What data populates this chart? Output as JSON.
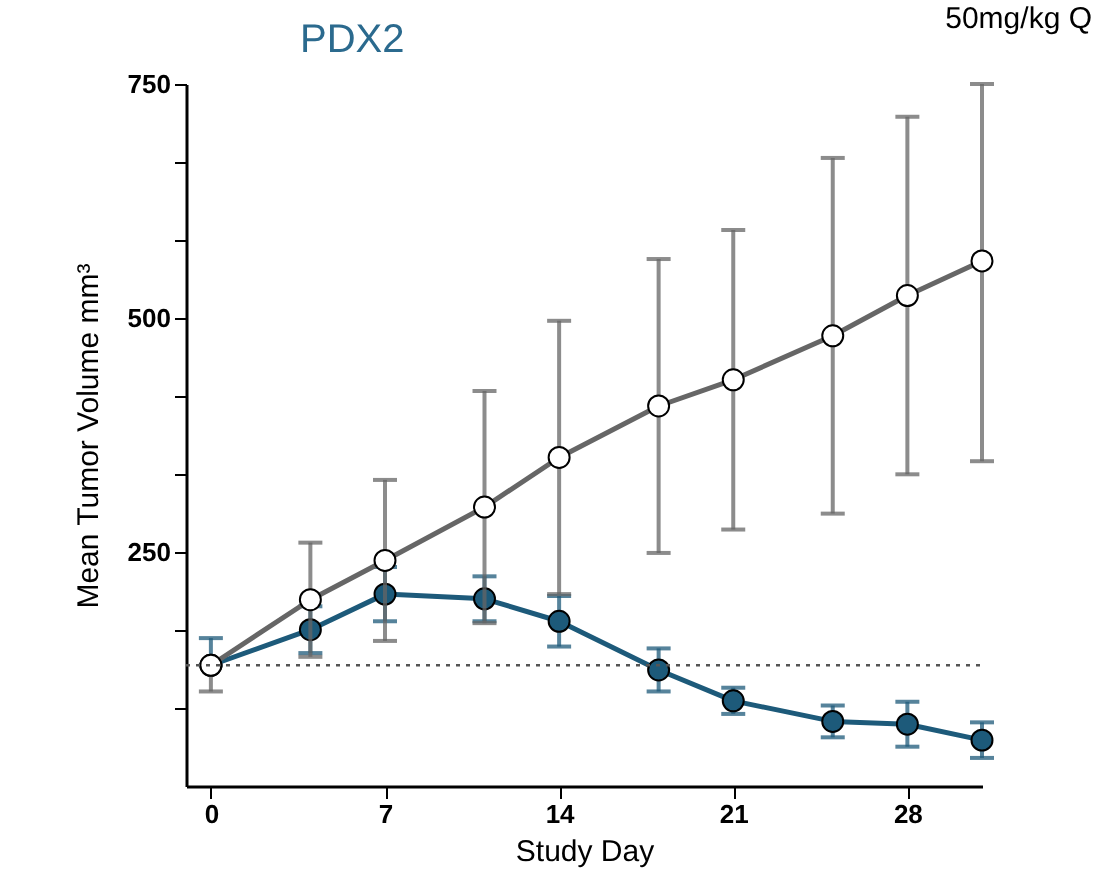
{
  "chart_data": {
    "type": "line",
    "title": "PDX2",
    "xlabel": "Study Day",
    "ylabel": "Mean Tumor Volume mm³",
    "annotations": [
      "50mg/kg Q"
    ],
    "x": [
      0,
      4,
      7,
      11,
      14,
      18,
      21,
      25,
      28,
      31
    ],
    "xlim": [
      -1,
      31
    ],
    "xticks": [
      0,
      7,
      14,
      21,
      28
    ],
    "ylim": [
      0,
      750
    ],
    "yticks": [
      {
        "value": 83,
        "label": null
      },
      {
        "value": 167,
        "label": null
      },
      250,
      {
        "value": 333,
        "label": null
      },
      {
        "value": 417,
        "label": null
      },
      500,
      {
        "value": 583,
        "label": null
      },
      {
        "value": 667,
        "label": null
      },
      750
    ],
    "series": [
      {
        "color": "#666666",
        "marker": "circle",
        "line_style": "solid",
        "values": [
          129,
          199,
          241,
          298,
          351,
          406,
          434,
          481,
          524,
          561
        ],
        "errors": [
          [
            101,
            129
          ],
          61,
          86,
          124,
          146,
          157,
          160,
          190,
          191,
          [
            347,
            750
          ]
        ]
      },
      {
        "color": "#1d5a7a",
        "marker": "circle",
        "line_style": "solid",
        "values": [
          129,
          167,
          205,
          200,
          176,
          124,
          91,
          69,
          66,
          49
        ],
        "errors": [
          [
            129,
            158
          ],
          25,
          29,
          24,
          27,
          23,
          14,
          17,
          24,
          19
        ]
      }
    ],
    "ref_lines": [
      {
        "axis": "y",
        "value": 129,
        "color": "#555555",
        "line_style": "dotted"
      }
    ],
    "grid": false
  }
}
